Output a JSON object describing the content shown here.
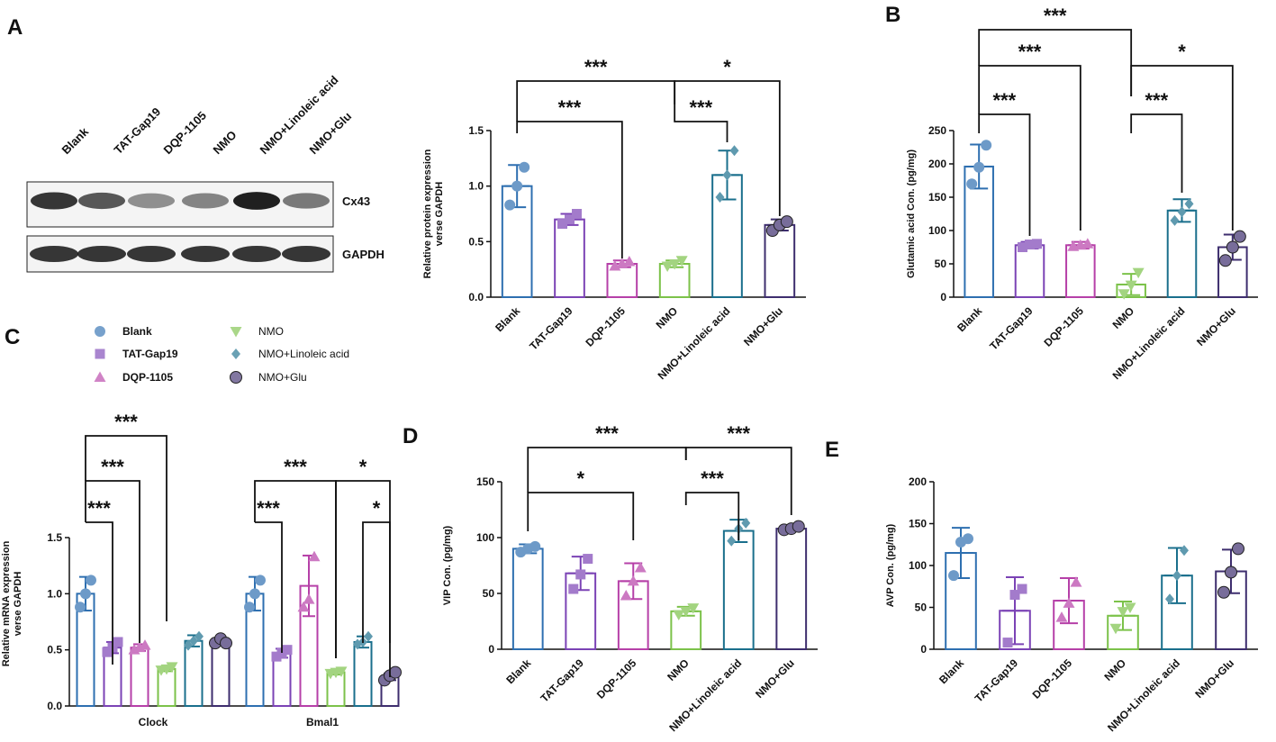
{
  "figure": {
    "panel_letters": [
      "A",
      "B",
      "C",
      "D",
      "E"
    ]
  },
  "groups": [
    "Blank",
    "TAT-Gap19",
    "DQP-1105",
    "NMO",
    "NMO+Linoleic acid",
    "NMO+Glu"
  ],
  "colors": {
    "Blank": "#2e6fb0",
    "TAT-Gap19": "#7b43b5",
    "DQP-1105": "#b640a8",
    "NMO": "#7cc24a",
    "NMO+Linoleic acid": "#1a6f8c",
    "NMO+Glu": "#3e2e6e"
  },
  "western_blot": {
    "lane_labels": [
      "Blank",
      "TAT-Gap19",
      "DQP-1105",
      "NMO",
      "NMO+Linoleic acid",
      "NMO+Glu"
    ],
    "bands": [
      "Cx43",
      "GAPDH"
    ],
    "cx43_intensity": [
      0.85,
      0.7,
      0.45,
      0.5,
      0.95,
      0.55
    ],
    "gapdh_intensity": [
      0.85,
      0.85,
      0.85,
      0.85,
      0.85,
      0.85
    ]
  },
  "legend": {
    "items": [
      {
        "label": "Blank",
        "marker": "circle",
        "bold": true
      },
      {
        "label": "TAT-Gap19",
        "marker": "square",
        "bold": true
      },
      {
        "label": "DQP-1105",
        "marker": "triangle",
        "bold": true
      },
      {
        "label": "NMO",
        "marker": "triangle-down",
        "bold": false
      },
      {
        "label": "NMO+Linoleic acid",
        "marker": "diamond",
        "bold": false
      },
      {
        "label": "NMO+Glu",
        "marker": "big-circle",
        "bold": false
      }
    ]
  },
  "chart_data": [
    {
      "id": "A",
      "type": "bar",
      "title": "",
      "xlabel": "",
      "ylabel": "Relative protein expression verse GAPDH",
      "ylim": [
        0,
        1.5
      ],
      "yticks": [
        "0.0",
        "0.5",
        "1.0",
        "1.5"
      ],
      "categories": [
        "Blank",
        "TAT-Gap19",
        "DQP-1105",
        "NMO",
        "NMO+Linoleic acid",
        "NMO+Glu"
      ],
      "values": [
        1.0,
        0.7,
        0.3,
        0.3,
        1.1,
        0.65
      ],
      "errors": [
        0.19,
        0.05,
        0.03,
        0.03,
        0.22,
        0.05
      ],
      "points": [
        [
          0.83,
          1.0,
          1.17
        ],
        [
          0.66,
          0.7,
          0.75
        ],
        [
          0.28,
          0.3,
          0.32
        ],
        [
          0.28,
          0.3,
          0.33
        ],
        [
          0.9,
          1.1,
          1.32
        ],
        [
          0.6,
          0.65,
          0.68
        ]
      ],
      "significance": [
        {
          "from": "Blank",
          "to": "NMO",
          "label": "***"
        },
        {
          "from": "NMO",
          "to": "NMO+Glu",
          "label": "*"
        },
        {
          "from": "Blank",
          "to": "DQP-1105",
          "label": "***"
        },
        {
          "from": "NMO",
          "to": "NMO+Linoleic acid",
          "label": "***"
        }
      ]
    },
    {
      "id": "B",
      "type": "bar",
      "ylabel": "Glutamic acid Con. (pg/mg)",
      "ylim": [
        0,
        250
      ],
      "yticks": [
        "0",
        "50",
        "100",
        "150",
        "200",
        "250"
      ],
      "categories": [
        "Blank",
        "TAT-Gap19",
        "DQP-1105",
        "NMO",
        "NMO+Linoleic acid",
        "NMO+Glu"
      ],
      "values": [
        196,
        78,
        78,
        19,
        130,
        75
      ],
      "errors": [
        33,
        5,
        5,
        16,
        17,
        19
      ],
      "points": [
        [
          170,
          195,
          228
        ],
        [
          75,
          79,
          80
        ],
        [
          76,
          78,
          80
        ],
        [
          5,
          18,
          37
        ],
        [
          115,
          128,
          140
        ],
        [
          55,
          75,
          91
        ]
      ],
      "significance": [
        {
          "from": "Blank",
          "to": "NMO",
          "label": "***"
        },
        {
          "from": "Blank",
          "to": "DQP-1105",
          "label": "***"
        },
        {
          "from": "NMO",
          "to": "NMO+Glu",
          "label": "*"
        },
        {
          "from": "Blank",
          "to": "TAT-Gap19",
          "label": "***"
        },
        {
          "from": "NMO",
          "to": "NMO+Linoleic acid",
          "label": "***"
        }
      ]
    },
    {
      "id": "C",
      "type": "bar",
      "ylabel": "Relative mRNA expression verse GAPDH",
      "ylim": [
        0,
        1.5
      ],
      "yticks": [
        "0.0",
        "0.5",
        "1.0",
        "1.5"
      ],
      "categories": [
        "Clock",
        "Bmal1"
      ],
      "series": [
        {
          "name": "Blank",
          "values": [
            1.0,
            1.0
          ],
          "errors": [
            0.15,
            0.15
          ],
          "points": [
            [
              0.88,
              1.0,
              1.12
            ],
            [
              0.88,
              1.0,
              1.12
            ]
          ]
        },
        {
          "name": "TAT-Gap19",
          "values": [
            0.52,
            0.47
          ],
          "errors": [
            0.05,
            0.04
          ],
          "points": [
            [
              0.48,
              0.52,
              0.57
            ],
            [
              0.44,
              0.47,
              0.5
            ]
          ]
        },
        {
          "name": "DQP-1105",
          "values": [
            0.52,
            1.07
          ],
          "errors": [
            0.03,
            0.27
          ],
          "points": [
            [
              0.5,
              0.52,
              0.54
            ],
            [
              0.88,
              0.95,
              1.33
            ]
          ]
        },
        {
          "name": "NMO",
          "values": [
            0.33,
            0.3
          ],
          "errors": [
            0.02,
            0.02
          ],
          "points": [
            [
              0.32,
              0.33,
              0.35
            ],
            [
              0.29,
              0.3,
              0.31
            ]
          ]
        },
        {
          "name": "NMO+Linoleic acid",
          "values": [
            0.58,
            0.57
          ],
          "errors": [
            0.05,
            0.05
          ],
          "points": [
            [
              0.54,
              0.58,
              0.62
            ],
            [
              0.55,
              0.57,
              0.62
            ]
          ]
        },
        {
          "name": "NMO+Glu",
          "values": [
            0.57,
            0.26
          ],
          "errors": [
            0.0,
            0.03
          ],
          "points": [
            [
              0.56,
              0.6,
              0.56
            ],
            [
              0.23,
              0.27,
              0.3
            ]
          ]
        }
      ],
      "significance": [
        {
          "group": "Clock",
          "from": "Blank",
          "to": "NMO",
          "label": "***"
        },
        {
          "group": "Clock",
          "from": "Blank",
          "to": "DQP-1105",
          "label": "***"
        },
        {
          "group": "Clock",
          "from": "Blank",
          "to": "TAT-Gap19",
          "label": "***"
        },
        {
          "group": "Bmal1",
          "from": "Blank",
          "to": "NMO",
          "label": "***"
        },
        {
          "group": "Bmal1",
          "from": "NMO",
          "to": "NMO+Glu",
          "label": "*"
        },
        {
          "group": "Bmal1",
          "from": "Blank",
          "to": "TAT-Gap19",
          "label": "***"
        },
        {
          "group": "Bmal1",
          "from": "NMO+Linoleic acid",
          "to": "NMO+Glu",
          "label": "*"
        }
      ]
    },
    {
      "id": "D",
      "type": "bar",
      "ylabel": "VIP Con. (pg/mg)",
      "ylim": [
        0,
        150
      ],
      "yticks": [
        "0",
        "50",
        "100",
        "150"
      ],
      "categories": [
        "Blank",
        "TAT-Gap19",
        "DQP-1105",
        "NMO",
        "NMO+Linoleic acid",
        "NMO+Glu"
      ],
      "values": [
        90,
        68,
        61,
        34,
        106,
        108
      ],
      "errors": [
        4,
        15,
        16,
        4,
        10,
        1
      ],
      "points": [
        [
          87,
          90,
          92
        ],
        [
          54,
          67,
          81
        ],
        [
          48,
          61,
          73
        ],
        [
          31,
          34,
          37
        ],
        [
          97,
          108,
          113
        ],
        [
          107,
          108,
          110
        ]
      ],
      "significance": [
        {
          "from": "Blank",
          "to": "NMO",
          "label": "***"
        },
        {
          "from": "NMO",
          "to": "NMO+Glu",
          "label": "***"
        },
        {
          "from": "Blank",
          "to": "DQP-1105",
          "label": "*"
        },
        {
          "from": "NMO",
          "to": "NMO+Linoleic acid",
          "label": "***"
        }
      ]
    },
    {
      "id": "E",
      "type": "bar",
      "ylabel": "AVP Con. (pg/mg)",
      "ylim": [
        0,
        200
      ],
      "yticks": [
        "0",
        "50",
        "100",
        "150",
        "200"
      ],
      "categories": [
        "Blank",
        "TAT-Gap19",
        "DQP-1105",
        "NMO",
        "NMO+Linoleic acid",
        "NMO+Glu"
      ],
      "values": [
        115,
        46,
        58,
        40,
        88,
        93
      ],
      "errors": [
        30,
        40,
        27,
        17,
        33,
        26
      ],
      "points": [
        [
          88,
          128,
          132
        ],
        [
          8,
          65,
          72
        ],
        [
          38,
          55,
          80
        ],
        [
          25,
          45,
          50
        ],
        [
          60,
          88,
          118
        ],
        [
          68,
          92,
          120
        ]
      ],
      "significance": []
    }
  ]
}
